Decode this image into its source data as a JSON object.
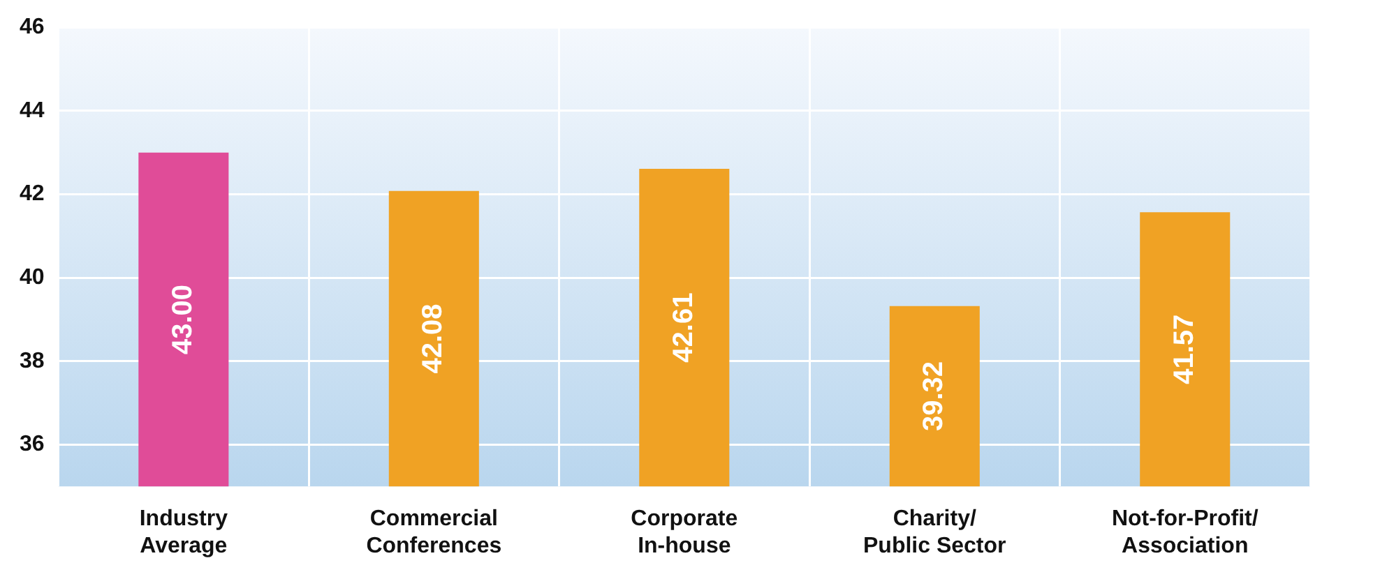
{
  "chart_data": {
    "type": "bar",
    "categories": [
      "Industry\nAverage",
      "Commercial\nConferences",
      "Corporate\nIn-house",
      "Charity/\nPublic Sector",
      "Not-for-Profit/\nAssociation"
    ],
    "values": [
      43.0,
      42.08,
      42.61,
      39.32,
      41.57
    ],
    "colors": [
      "#e04c98",
      "#f0a224",
      "#f0a224",
      "#f0a224",
      "#f0a224"
    ],
    "ylim": [
      35,
      46
    ],
    "yticks": [
      36,
      38,
      40,
      42,
      44,
      46
    ],
    "value_labels": [
      "43.00",
      "42.08",
      "42.61",
      "39.32",
      "41.57"
    ],
    "grid": true
  }
}
